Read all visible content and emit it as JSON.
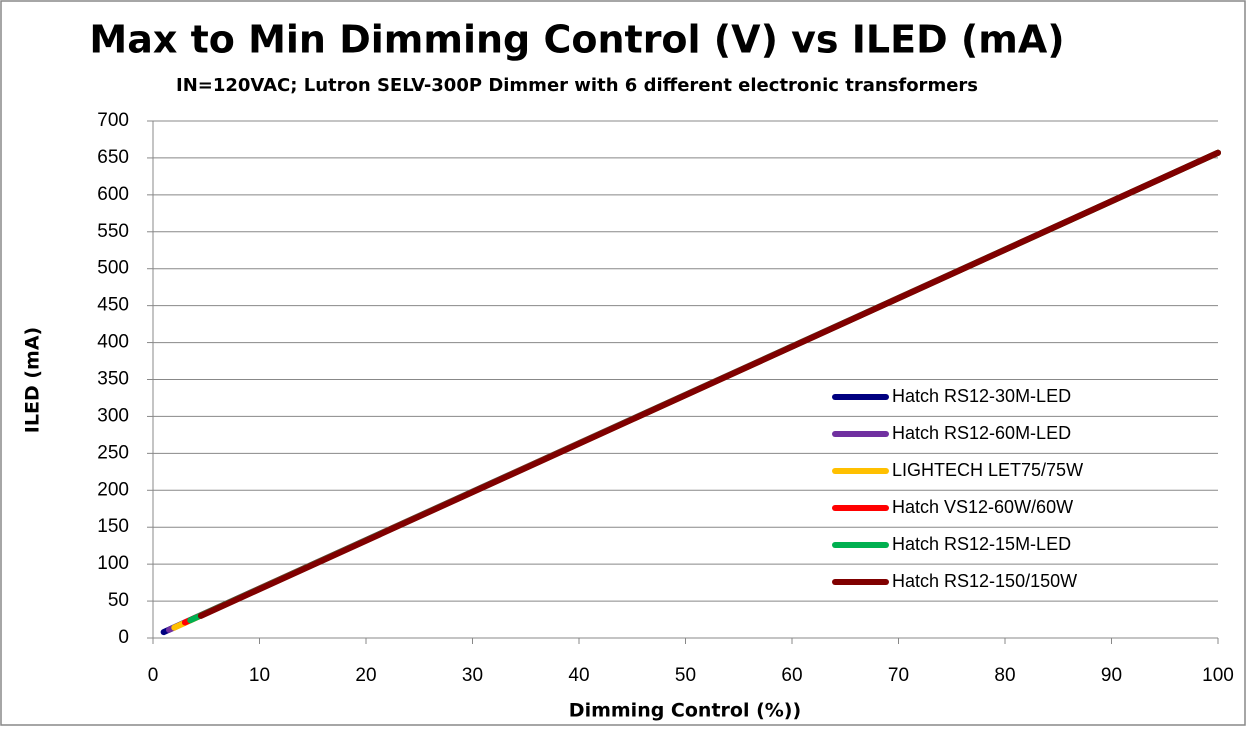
{
  "chart_data": {
    "type": "line",
    "title": "Max to Min Dimming Control (V) vs ILED (mA)",
    "subtitle": "IN=120VAC; Lutron SELV-300P Dimmer with 6 different electronic transformers",
    "x_label": "Dimming Control (%))",
    "y_label": "ILED (mA)",
    "xlim": [
      0,
      100
    ],
    "xticks": [
      0,
      10,
      20,
      30,
      40,
      50,
      60,
      70,
      80,
      90,
      100
    ],
    "ylim": [
      0,
      700
    ],
    "yticks": [
      0,
      50,
      100,
      150,
      200,
      250,
      300,
      350,
      400,
      450,
      500,
      550,
      600,
      650,
      700
    ],
    "grid": true,
    "legend": "right",
    "series": [
      {
        "name": "Hatch RS12-30M-LED",
        "color": "#000080",
        "x": [
          1,
          100
        ],
        "values": [
          8,
          657
        ]
      },
      {
        "name": "Hatch RS12-60M-LED",
        "color": "#7030a0",
        "x": [
          1.5,
          100
        ],
        "values": [
          11,
          657
        ]
      },
      {
        "name": "LIGHTECH LET75/75W",
        "color": "#ffc000",
        "x": [
          2,
          100
        ],
        "values": [
          14,
          657
        ]
      },
      {
        "name": "Hatch VS12-60W/60W",
        "color": "#ff0000",
        "x": [
          3,
          100
        ],
        "values": [
          21,
          657
        ]
      },
      {
        "name": "Hatch RS12-15M-LED",
        "color": "#00b050",
        "x": [
          3.5,
          100
        ],
        "values": [
          24,
          657
        ]
      },
      {
        "name": "Hatch RS12-150/150W",
        "color": "#800000",
        "x": [
          4.5,
          100
        ],
        "values": [
          30,
          657
        ]
      }
    ]
  }
}
